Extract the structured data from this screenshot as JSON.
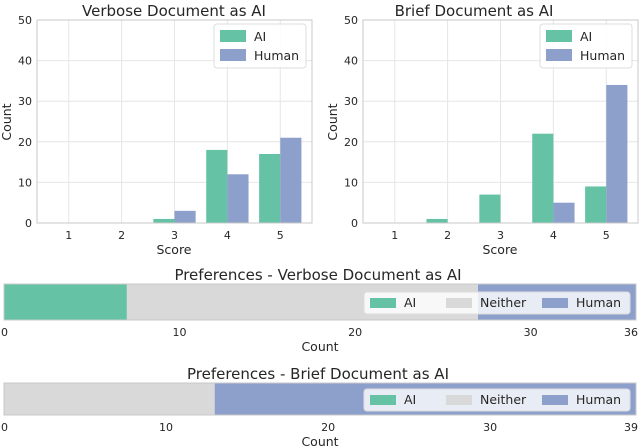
{
  "chart_data": [
    {
      "type": "bar",
      "title": "Verbose Document as AI",
      "xlabel": "Score",
      "ylabel": "Count",
      "categories": [
        "1",
        "2",
        "3",
        "4",
        "5"
      ],
      "ylim": [
        0,
        50
      ],
      "yticks": [
        0,
        10,
        20,
        30,
        40,
        50
      ],
      "grid": true,
      "legend": "top-right",
      "series": [
        {
          "name": "AI",
          "color": "#66c2a5",
          "values": [
            0,
            0,
            1,
            18,
            17
          ]
        },
        {
          "name": "Human",
          "color": "#8da0cb",
          "values": [
            0,
            0,
            3,
            12,
            21
          ]
        }
      ]
    },
    {
      "type": "bar",
      "title": "Brief Document as AI",
      "xlabel": "Score",
      "ylabel": "Count",
      "categories": [
        "1",
        "2",
        "3",
        "4",
        "5"
      ],
      "ylim": [
        0,
        50
      ],
      "yticks": [
        0,
        10,
        20,
        30,
        40,
        50
      ],
      "grid": true,
      "legend": "top-right",
      "series": [
        {
          "name": "AI",
          "color": "#66c2a5",
          "values": [
            0,
            1,
            7,
            22,
            9
          ]
        },
        {
          "name": "Human",
          "color": "#8da0cb",
          "values": [
            0,
            0,
            0,
            5,
            34
          ]
        }
      ]
    },
    {
      "type": "bar",
      "orientation": "horizontal-stacked",
      "title": "Preferences - Verbose Document as AI",
      "xlabel": "Count",
      "xlim": [
        0,
        36
      ],
      "xticks": [
        0,
        10,
        20,
        30,
        36
      ],
      "legend": "right",
      "series": [
        {
          "name": "AI",
          "color": "#66c2a5",
          "value": 7
        },
        {
          "name": "Neither",
          "color": "#d9d9d9",
          "value": 20
        },
        {
          "name": "Human",
          "color": "#8da0cb",
          "value": 9
        }
      ]
    },
    {
      "type": "bar",
      "orientation": "horizontal-stacked",
      "title": "Preferences - Brief Document as AI",
      "xlabel": "Count",
      "xlim": [
        0,
        39
      ],
      "xticks": [
        0,
        10,
        20,
        30,
        39
      ],
      "legend": "right",
      "series": [
        {
          "name": "AI",
          "color": "#66c2a5",
          "value": 0
        },
        {
          "name": "Neither",
          "color": "#d9d9d9",
          "value": 13
        },
        {
          "name": "Human",
          "color": "#8da0cb",
          "value": 26
        }
      ]
    }
  ]
}
